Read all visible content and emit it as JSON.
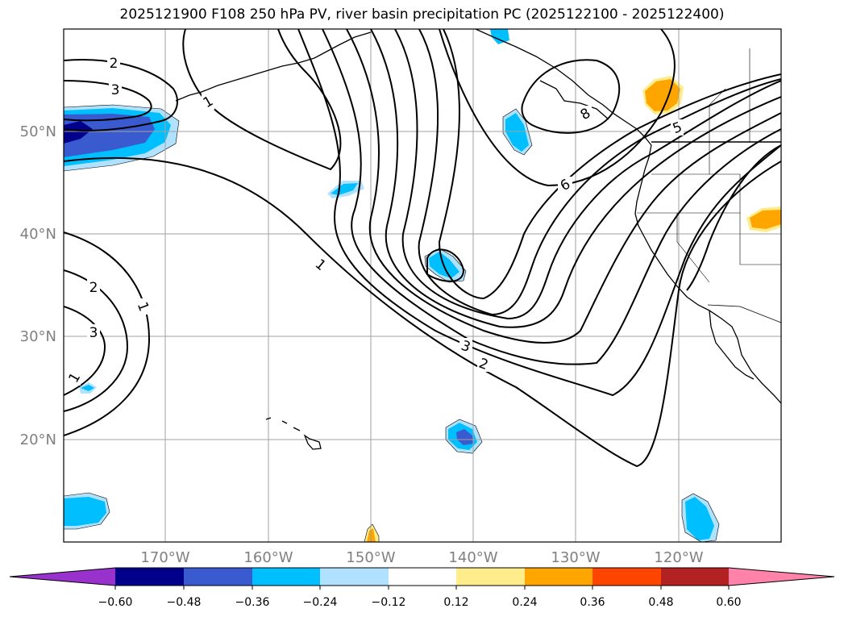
{
  "title": "2025121900 F108 250 hPa PV, river basin precipitation PC (2025122100 - 2025122400)",
  "lon_labels": [
    "170°W",
    "160°W",
    "150°W",
    "140°W",
    "130°W",
    "120°W"
  ],
  "lat_labels": [
    "50°N",
    "40°N",
    "30°N",
    "20°N"
  ],
  "contour_labels": [
    "2",
    "3",
    "1",
    "2",
    "3",
    "1",
    "1",
    "6",
    "5",
    "8",
    "3",
    "2",
    "1"
  ],
  "colorbar": {
    "tick_labels": [
      "−0.60",
      "−0.48",
      "−0.36",
      "−0.24",
      "−0.12",
      "0.12",
      "0.24",
      "0.36",
      "0.48",
      "0.60"
    ],
    "colors": [
      "#9932cc",
      "#00008b",
      "#3a5bd0",
      "#00bfff",
      "#b0e2ff",
      "#ffffff",
      "#ffec8b",
      "#ffa500",
      "#ff4500",
      "#b22222",
      "#ff82ab"
    ]
  }
}
